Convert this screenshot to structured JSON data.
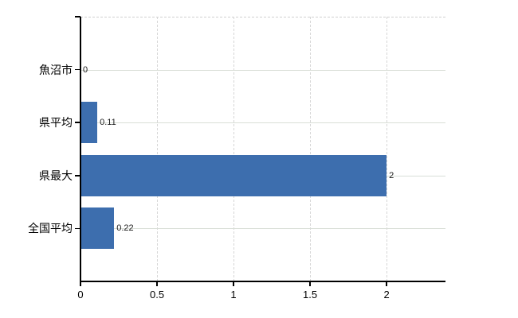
{
  "chart_data": {
    "type": "bar",
    "orientation": "horizontal",
    "title": "",
    "xlabel": "",
    "ylabel": "",
    "categories": [
      "魚沼市",
      "県平均",
      "県最大",
      "全国平均"
    ],
    "values": [
      0,
      0.11,
      2,
      0.22
    ],
    "value_labels": [
      "0",
      "0.11",
      "2",
      "0.22"
    ],
    "x_ticks": [
      0,
      0.5,
      1,
      1.5,
      2
    ],
    "x_tick_labels": [
      "0",
      "0.5",
      "1",
      "1.5",
      "2"
    ],
    "xlim": [
      0,
      2.385
    ],
    "grid": true,
    "legend": false,
    "colors": {
      "bar": "#3d6eae",
      "horizontal_gridline": "#d9ded7",
      "vertical_gridline": "#d6d6d6",
      "top_border": "#cfcfcf",
      "axis": "#000000",
      "label_text": "#000000",
      "background": "#ffffff"
    }
  }
}
